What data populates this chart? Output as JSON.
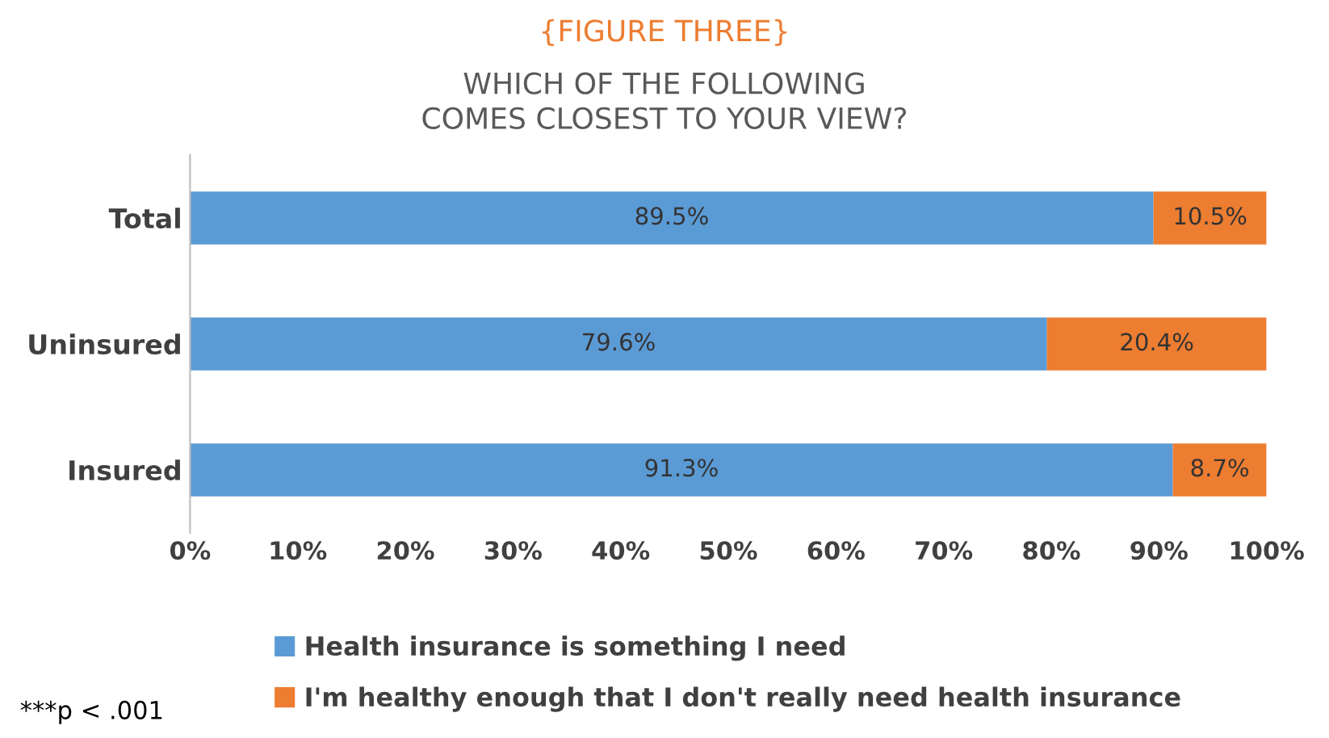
{
  "chart_data": {
    "type": "bar",
    "orientation": "horizontal",
    "stacked": true,
    "title": "{FIGURE THREE}",
    "subtitle": "WHICH OF THE FOLLOWING\nCOMES CLOSEST TO YOUR VIEW?",
    "categories": [
      "Total",
      "Uninsured",
      "Insured"
    ],
    "series": [
      {
        "name": "Health insurance is something I need",
        "color": "#5b9bd5",
        "values": [
          89.5,
          79.6,
          91.3
        ],
        "value_labels": [
          "89.5%",
          "79.6%",
          "91.3%"
        ]
      },
      {
        "name": "I'm healthy enough that I don't really need health insurance",
        "color": "#ed7d31",
        "values": [
          10.5,
          20.4,
          8.7
        ],
        "value_labels": [
          "10.5%",
          "20.4%",
          "8.7%"
        ]
      }
    ],
    "xlim": [
      0,
      100
    ],
    "xticks": [
      {
        "value": 0,
        "label": "0%"
      },
      {
        "value": 10,
        "label": "10%"
      },
      {
        "value": 20,
        "label": "20%"
      },
      {
        "value": 30,
        "label": "30%"
      },
      {
        "value": 40,
        "label": "40%"
      },
      {
        "value": 50,
        "label": "50%"
      },
      {
        "value": 60,
        "label": "60%"
      },
      {
        "value": 70,
        "label": "70%"
      },
      {
        "value": 80,
        "label": "80%"
      },
      {
        "value": 90,
        "label": "90%"
      },
      {
        "value": 100,
        "label": "100%"
      }
    ],
    "grid": false,
    "legend": "bottom",
    "annotations": [
      "***p < .001"
    ]
  }
}
